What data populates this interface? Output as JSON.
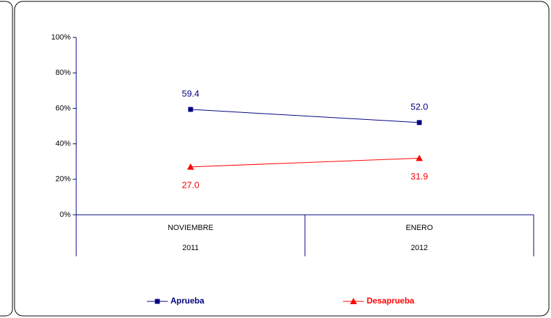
{
  "chart_data": {
    "type": "line",
    "categories": [
      [
        "NOVIEMBRE",
        "2011"
      ],
      [
        "ENERO",
        "2012"
      ]
    ],
    "series": [
      {
        "name": "Aprueba",
        "color": "#000080",
        "marker": "square",
        "values": [
          59.4,
          52.0
        ],
        "value_labels": [
          "59.4",
          "52.0"
        ]
      },
      {
        "name": "Desaprueba",
        "color": "#ff0000",
        "marker": "triangle",
        "values": [
          27.0,
          31.9
        ],
        "value_labels": [
          "27.0",
          "31.9"
        ]
      }
    ],
    "ylim": [
      0,
      100
    ],
    "yticks": [
      {
        "value": 0,
        "label": "0%"
      },
      {
        "value": 20,
        "label": "20%"
      },
      {
        "value": 40,
        "label": "40%"
      },
      {
        "value": 60,
        "label": "60%"
      },
      {
        "value": 80,
        "label": "80%"
      },
      {
        "value": 100,
        "label": "100%"
      }
    ],
    "legend": "bottom"
  }
}
